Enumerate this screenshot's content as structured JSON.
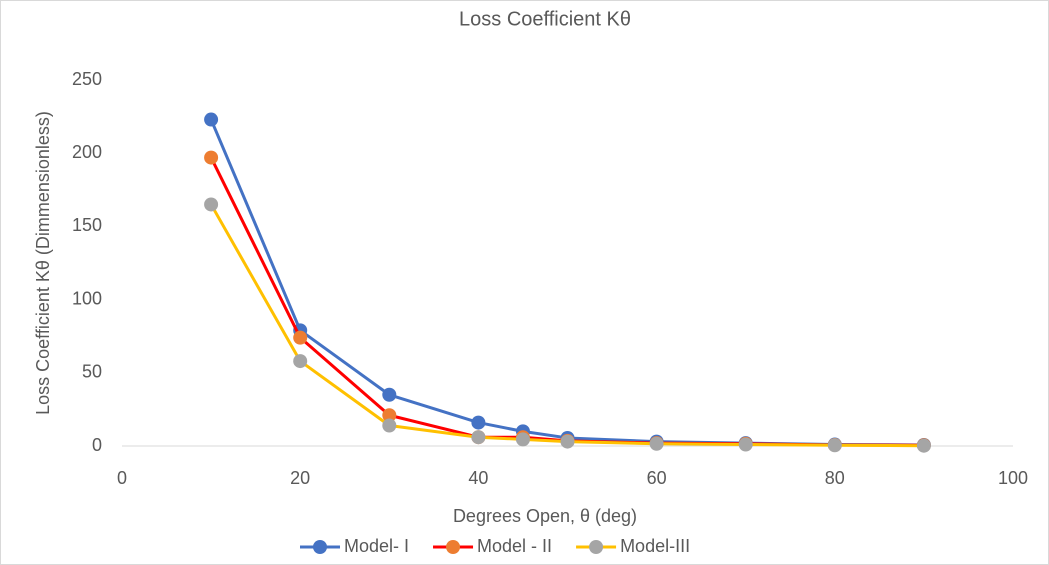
{
  "chart_data": {
    "type": "line",
    "title": "Loss Coefficient Kθ",
    "x_label": "Degrees Open, θ (deg)",
    "y_label": "Loss Coefficient Kθ (Dimmensionless)",
    "x": [
      10,
      20,
      30,
      40,
      45,
      50,
      60,
      70,
      80,
      90
    ],
    "series": [
      {
        "name": "Model- I",
        "color": "#4472c4",
        "marker_color": "#4472c4",
        "values": [
          223,
          79,
          35,
          16,
          10,
          5.5,
          3,
          2,
          1,
          0.7
        ]
      },
      {
        "name": "Model - II",
        "color": "#ff0000",
        "marker_color": "#ed7d31",
        "values": [
          197,
          74,
          21,
          6,
          6,
          3.5,
          2,
          1.5,
          0.7,
          0.5
        ]
      },
      {
        "name": "Model-III",
        "color": "#ffc000",
        "marker_color": "#a5a5a5",
        "values": [
          165,
          58,
          14,
          6,
          4.5,
          3,
          1.5,
          1,
          0.5,
          0.2
        ]
      }
    ],
    "xlim": [
      0,
      100
    ],
    "xticks": [
      0,
      20,
      40,
      60,
      80,
      100
    ],
    "ylim": [
      0,
      250
    ],
    "yticks": [
      0,
      50,
      100,
      150,
      200,
      250
    ],
    "grid": false,
    "legend": "bottom"
  }
}
